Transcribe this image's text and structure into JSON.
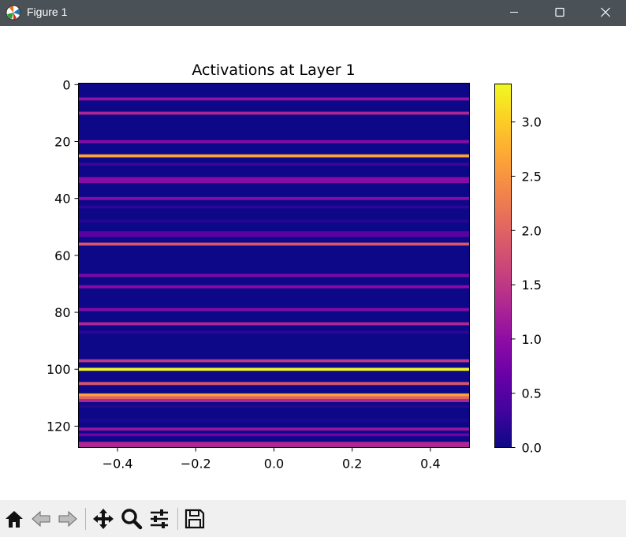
{
  "window": {
    "title": "Figure 1",
    "icon": "matplotlib-icon",
    "controls": [
      "minimize-icon",
      "maximize-icon",
      "close-icon"
    ],
    "titlebar_color": "#4a5157"
  },
  "toolbar": {
    "buttons": [
      "home-icon",
      "back-arrow-icon",
      "forward-arrow-icon",
      "pan-move-icon",
      "zoom-magnifier-icon",
      "configure-subplots-icon",
      "save-floppy-icon"
    ],
    "background": "#f0f0f0"
  },
  "chart_data": {
    "type": "heatmap",
    "title": "Activations at Layer 1",
    "xlabel": "",
    "ylabel": "",
    "colormap": "plasma",
    "xlim": [
      -0.5,
      0.5
    ],
    "ylim": [
      127.5,
      -0.5
    ],
    "x_ticks": [
      -0.4,
      -0.2,
      0.0,
      0.2,
      0.4
    ],
    "x_tick_labels": [
      "−0.4",
      "−0.2",
      "0.0",
      "0.2",
      "0.4"
    ],
    "y_ticks": [
      0,
      20,
      40,
      60,
      80,
      100,
      120
    ],
    "y_tick_labels": [
      "0",
      "20",
      "40",
      "60",
      "80",
      "100",
      "120"
    ],
    "colorbar": {
      "vmin": 0.0,
      "vmax": 3.35,
      "ticks": [
        0.0,
        0.5,
        1.0,
        1.5,
        2.0,
        2.5,
        3.0
      ],
      "tick_labels": [
        "0.0",
        "0.5",
        "1.0",
        "1.5",
        "2.0",
        "2.5",
        "3.0"
      ],
      "position": "right"
    },
    "rows": 128,
    "columns": 1,
    "nonzero_rows": [
      {
        "row": 5,
        "value": 1.05
      },
      {
        "row": 10,
        "value": 1.3
      },
      {
        "row": 20,
        "value": 0.95
      },
      {
        "row": 25,
        "value": 2.65
      },
      {
        "row": 28,
        "value": 0.3
      },
      {
        "row": 33,
        "value": 0.95
      },
      {
        "row": 34,
        "value": 0.95
      },
      {
        "row": 40,
        "value": 0.95
      },
      {
        "row": 43,
        "value": 0.2
      },
      {
        "row": 48,
        "value": 0.15
      },
      {
        "row": 52,
        "value": 0.55
      },
      {
        "row": 53,
        "value": 0.55
      },
      {
        "row": 56,
        "value": 1.85
      },
      {
        "row": 67,
        "value": 0.85
      },
      {
        "row": 71,
        "value": 0.95
      },
      {
        "row": 79,
        "value": 0.95
      },
      {
        "row": 84,
        "value": 1.3
      },
      {
        "row": 87,
        "value": 0.2
      },
      {
        "row": 97,
        "value": 1.5
      },
      {
        "row": 100,
        "value": 3.35
      },
      {
        "row": 105,
        "value": 1.85
      },
      {
        "row": 109,
        "value": 2.65
      },
      {
        "row": 110,
        "value": 2.0
      },
      {
        "row": 111,
        "value": 1.3
      },
      {
        "row": 113,
        "value": 0.15
      },
      {
        "row": 118,
        "value": 0.1
      },
      {
        "row": 121,
        "value": 1.1
      },
      {
        "row": 123,
        "value": 0.7
      },
      {
        "row": 126,
        "value": 1.3
      },
      {
        "row": 127,
        "value": 1.3
      }
    ]
  }
}
